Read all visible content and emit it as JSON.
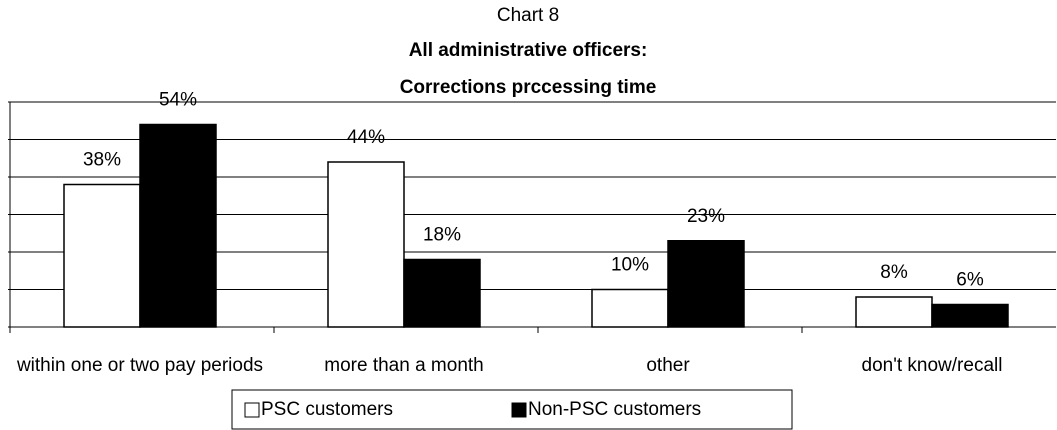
{
  "chart_data": {
    "type": "bar",
    "title": "Chart 8",
    "subtitle": [
      "All administrative officers:",
      "Corrections prccessing time"
    ],
    "categories": [
      "within one or two pay periods",
      "more than a month",
      "other",
      "don't know/recall"
    ],
    "series": [
      {
        "name": "PSC customers",
        "color": "#ffffff",
        "values": [
          38,
          44,
          10,
          8
        ],
        "value_labels": [
          "38%",
          "44%",
          "10%",
          "8%"
        ]
      },
      {
        "name": "Non-PSC customers",
        "color": "#000000",
        "values": [
          54,
          18,
          23,
          6
        ],
        "value_labels": [
          "54%",
          "18%",
          "23%",
          "6%"
        ]
      }
    ],
    "ylim": [
      0,
      60
    ],
    "yticks": [
      0,
      10,
      20,
      30,
      40,
      50,
      60
    ],
    "grid": true,
    "legend": "bottom"
  }
}
